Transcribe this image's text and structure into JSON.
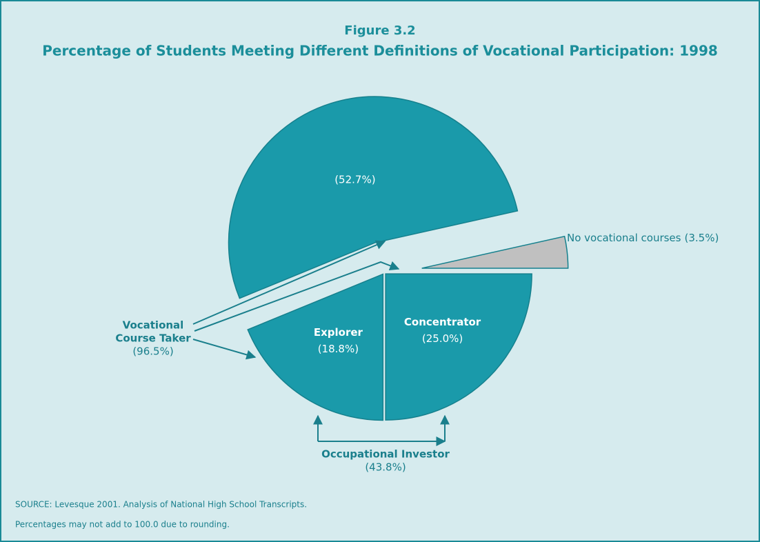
{
  "chart_data": {
    "type": "pie",
    "title": "Figure 3.2",
    "subtitle": "Percentage of Students Meeting Different Definitions of Vocational Participation: 1998",
    "categories": [
      "Concentrator",
      "Explorer",
      null,
      "No vocational courses"
    ],
    "values": [
      25.0,
      18.8,
      52.7,
      3.5
    ],
    "value_labels": [
      "(25.0%)",
      "(18.8%)",
      "(52.7%)",
      "(3.5%)"
    ],
    "colors": [
      "#1a9aaa",
      "#1a9aaa",
      "#1a9aaa",
      "#c0c0c0"
    ],
    "groups": [
      {
        "label": [
          "Vocational",
          "Course Taker"
        ],
        "value": 96.5,
        "value_label": "(96.5%)"
      },
      {
        "label": [
          "Occupational Investor"
        ],
        "value": 43.8,
        "value_label": "(43.8%)"
      }
    ],
    "notes": [
      "SOURCE: Levesque 2001. Analysis of National High School Transcripts.",
      "Percentages may not add to 100.0 due to rounding."
    ]
  }
}
